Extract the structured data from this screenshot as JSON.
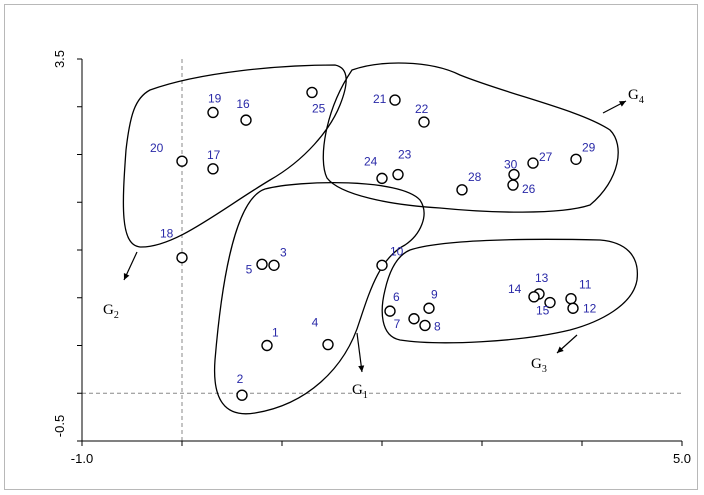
{
  "chart_data": {
    "type": "scatter",
    "title": "",
    "xlabel": "",
    "ylabel": "",
    "xlim": [
      -1.0,
      5.0
    ],
    "ylim": [
      -0.5,
      3.5
    ],
    "x_ticks": [
      "-1.0",
      "5.0"
    ],
    "y_ticks": [
      "3.5",
      "-0.5"
    ],
    "reference_lines": {
      "x": 0.0,
      "y": 0.0
    },
    "points": [
      {
        "label": "1",
        "x": 0.85,
        "y": 0.5
      },
      {
        "label": "2",
        "x": 0.6,
        "y": -0.02
      },
      {
        "label": "3",
        "x": 0.92,
        "y": 1.34
      },
      {
        "label": "4",
        "x": 1.46,
        "y": 0.51
      },
      {
        "label": "5",
        "x": 0.8,
        "y": 1.35
      },
      {
        "label": "6",
        "x": 2.08,
        "y": 0.86
      },
      {
        "label": "7",
        "x": 2.32,
        "y": 0.78
      },
      {
        "label": "8",
        "x": 2.43,
        "y": 0.71
      },
      {
        "label": "9",
        "x": 2.47,
        "y": 0.89
      },
      {
        "label": "10",
        "x": 2.0,
        "y": 1.34
      },
      {
        "label": "11",
        "x": 3.89,
        "y": 0.99
      },
      {
        "label": "12",
        "x": 3.91,
        "y": 0.89
      },
      {
        "label": "13",
        "x": 3.57,
        "y": 1.04
      },
      {
        "label": "14",
        "x": 3.52,
        "y": 1.01
      },
      {
        "label": "15",
        "x": 3.68,
        "y": 0.95
      },
      {
        "label": "16",
        "x": 0.64,
        "y": 2.86
      },
      {
        "label": "17",
        "x": 0.31,
        "y": 2.35
      },
      {
        "label": "18",
        "x": 0.0,
        "y": 1.42
      },
      {
        "label": "19",
        "x": 0.31,
        "y": 2.94
      },
      {
        "label": "20",
        "x": 0.0,
        "y": 2.43
      },
      {
        "label": "21",
        "x": 2.13,
        "y": 3.07
      },
      {
        "label": "22",
        "x": 2.42,
        "y": 2.84
      },
      {
        "label": "23",
        "x": 2.16,
        "y": 2.29
      },
      {
        "label": "24",
        "x": 2.0,
        "y": 2.25
      },
      {
        "label": "25",
        "x": 1.3,
        "y": 3.15
      },
      {
        "label": "26",
        "x": 3.31,
        "y": 2.18
      },
      {
        "label": "27",
        "x": 3.51,
        "y": 2.41
      },
      {
        "label": "28",
        "x": 2.8,
        "y": 2.13
      },
      {
        "label": "29",
        "x": 3.94,
        "y": 2.45
      },
      {
        "label": "30",
        "x": 3.32,
        "y": 2.29
      }
    ],
    "groups": [
      {
        "label": "G",
        "subscript": "1",
        "members": [
          "1",
          "2",
          "3",
          "4",
          "5",
          "10"
        ]
      },
      {
        "label": "G",
        "subscript": "2",
        "members": [
          "16",
          "17",
          "18",
          "19",
          "20",
          "25"
        ]
      },
      {
        "label": "G",
        "subscript": "3",
        "members": [
          "6",
          "7",
          "8",
          "9",
          "11",
          "12",
          "13",
          "14",
          "15"
        ]
      },
      {
        "label": "G",
        "subscript": "4",
        "members": [
          "21",
          "22",
          "23",
          "24",
          "26",
          "27",
          "28",
          "29",
          "30"
        ]
      }
    ],
    "colors": {
      "points": "#000000",
      "labels": "#2a2aa8",
      "outline": "#000000",
      "reference": "#888888"
    }
  }
}
